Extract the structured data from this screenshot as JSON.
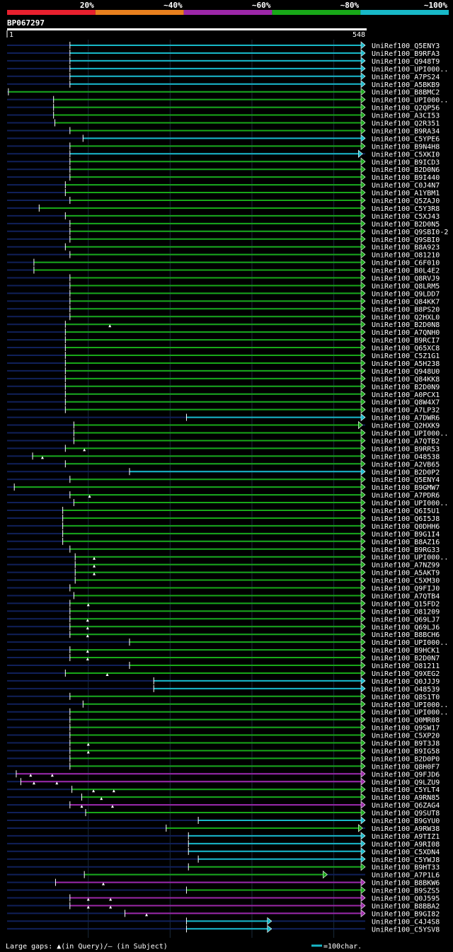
{
  "legend_bands": [
    {
      "label": "20%",
      "color": "#e8202e"
    },
    {
      "label": "~40%",
      "color": "#e8801e"
    },
    {
      "label": "~60%",
      "color": "#9c27a8"
    },
    {
      "label": "~80%",
      "color": "#18a818"
    },
    {
      "label": "~100%",
      "color": "#18b8c8"
    }
  ],
  "colors": {
    "background": "#000000",
    "query_line": "#10205a",
    "grid": "#1a2a3a"
  },
  "chart_data": {
    "type": "alignment_overview",
    "query_id": "BP067297",
    "query_start": "1",
    "query_end": "548",
    "query_length": 548,
    "grid_positions": [
      125,
      250,
      375,
      500
    ],
    "footer_left": "Large gaps: ▲(in Query)/– (in Subject)",
    "footer_right": "=100char.",
    "hits": [
      {
        "name": "UniRef100_Q5ENY3",
        "start": 97,
        "end": 548,
        "color": "cyan"
      },
      {
        "name": "UniRef100_B9RFA3",
        "start": 97,
        "end": 548,
        "color": "cyan"
      },
      {
        "name": "UniRef100_Q948T9",
        "start": 97,
        "end": 548,
        "color": "cyan"
      },
      {
        "name": "UniRef100_UPI000..",
        "start": 97,
        "end": 548,
        "color": "cyan"
      },
      {
        "name": "UniRef100_A7PS24",
        "start": 97,
        "end": 548,
        "color": "cyan"
      },
      {
        "name": "UniRef100_A5BKB9",
        "start": 97,
        "end": 548,
        "color": "cyan"
      },
      {
        "name": "UniRef100_B8BMC2",
        "start": 3,
        "end": 548,
        "color": "green"
      },
      {
        "name": "UniRef100_UPI000..",
        "start": 72,
        "end": 548,
        "color": "green"
      },
      {
        "name": "UniRef100_Q2QP56",
        "start": 72,
        "end": 548,
        "color": "green"
      },
      {
        "name": "UniRef100_A3CI53",
        "start": 72,
        "end": 548,
        "color": "green"
      },
      {
        "name": "UniRef100_Q2R351",
        "start": 74,
        "end": 548,
        "color": "green"
      },
      {
        "name": "UniRef100_B9RA34",
        "start": 97,
        "end": 548,
        "color": "green"
      },
      {
        "name": "UniRef100_C5YPE6",
        "start": 117,
        "end": 548,
        "color": "cyan"
      },
      {
        "name": "UniRef100_B9N4H8",
        "start": 97,
        "end": 548,
        "color": "green"
      },
      {
        "name": "UniRef100_C5XKI0",
        "start": 97,
        "end": 544,
        "color": "cyan"
      },
      {
        "name": "UniRef100_B9ICD3",
        "start": 97,
        "end": 548,
        "color": "green"
      },
      {
        "name": "UniRef100_B2D0N6",
        "start": 97,
        "end": 548,
        "color": "green"
      },
      {
        "name": "UniRef100_B9I440",
        "start": 97,
        "end": 548,
        "color": "green"
      },
      {
        "name": "UniRef100_C0J4N7",
        "start": 90,
        "end": 548,
        "color": "green"
      },
      {
        "name": "UniRef100_A1YBM1",
        "start": 90,
        "end": 548,
        "color": "green"
      },
      {
        "name": "UniRef100_Q5ZAJ0",
        "start": 97,
        "end": 548,
        "color": "green"
      },
      {
        "name": "UniRef100_C5Y3R8",
        "start": 50,
        "end": 548,
        "color": "green"
      },
      {
        "name": "UniRef100_C5XJ43",
        "start": 90,
        "end": 548,
        "color": "green"
      },
      {
        "name": "UniRef100_B2D0N5",
        "start": 97,
        "end": 548,
        "color": "green"
      },
      {
        "name": "UniRef100_Q9SBI0-2",
        "start": 97,
        "end": 548,
        "color": "green"
      },
      {
        "name": "UniRef100_Q9SBI0",
        "start": 97,
        "end": 548,
        "color": "green"
      },
      {
        "name": "UniRef100_B8A923",
        "start": 90,
        "end": 548,
        "color": "green"
      },
      {
        "name": "UniRef100_O81210",
        "start": 97,
        "end": 548,
        "color": "green"
      },
      {
        "name": "UniRef100_C6F010",
        "start": 42,
        "end": 548,
        "color": "green"
      },
      {
        "name": "UniRef100_B0L4E2",
        "start": 42,
        "end": 548,
        "color": "green"
      },
      {
        "name": "UniRef100_Q8RVJ9",
        "start": 97,
        "end": 548,
        "color": "green"
      },
      {
        "name": "UniRef100_Q8LRM5",
        "start": 97,
        "end": 548,
        "color": "green"
      },
      {
        "name": "UniRef100_Q9LDD7",
        "start": 97,
        "end": 548,
        "color": "green"
      },
      {
        "name": "UniRef100_Q84KK7",
        "start": 97,
        "end": 548,
        "color": "green"
      },
      {
        "name": "UniRef100_B8PS20",
        "start": 97,
        "end": 548,
        "color": "green"
      },
      {
        "name": "UniRef100_Q2HXL0",
        "start": 97,
        "end": 548,
        "color": "green"
      },
      {
        "name": "UniRef100_B2D0N8",
        "start": 90,
        "end": 548,
        "color": "green",
        "gaps": [
          158
        ]
      },
      {
        "name": "UniRef100_A7QNH0",
        "start": 90,
        "end": 548,
        "color": "green"
      },
      {
        "name": "UniRef100_B9RCI7",
        "start": 90,
        "end": 548,
        "color": "green"
      },
      {
        "name": "UniRef100_Q65XC8",
        "start": 90,
        "end": 548,
        "color": "green"
      },
      {
        "name": "UniRef100_C5Z1G1",
        "start": 90,
        "end": 548,
        "color": "green"
      },
      {
        "name": "UniRef100_A5H238",
        "start": 90,
        "end": 548,
        "color": "green"
      },
      {
        "name": "UniRef100_Q948U0",
        "start": 90,
        "end": 548,
        "color": "green"
      },
      {
        "name": "UniRef100_Q84KK8",
        "start": 90,
        "end": 548,
        "color": "green"
      },
      {
        "name": "UniRef100_B2D0N9",
        "start": 90,
        "end": 548,
        "color": "green"
      },
      {
        "name": "UniRef100_A0PCX1",
        "start": 90,
        "end": 548,
        "color": "green"
      },
      {
        "name": "UniRef100_Q8W4X7",
        "start": 90,
        "end": 548,
        "color": "green"
      },
      {
        "name": "UniRef100_A7LP32",
        "start": 90,
        "end": 548,
        "color": "green"
      },
      {
        "name": "UniRef100_A7DWR6",
        "start": 275,
        "end": 548,
        "color": "cyan"
      },
      {
        "name": "UniRef100_Q2HXK9",
        "start": 103,
        "end": 544,
        "color": "green"
      },
      {
        "name": "UniRef100_UPI000..",
        "start": 103,
        "end": 548,
        "color": "green"
      },
      {
        "name": "UniRef100_A7QTB2",
        "start": 103,
        "end": 548,
        "color": "green"
      },
      {
        "name": "UniRef100_B9RR53",
        "start": 90,
        "end": 548,
        "color": "green",
        "gaps": [
          119
        ]
      },
      {
        "name": "UniRef100_O48538",
        "start": 40,
        "end": 548,
        "color": "green",
        "gaps": [
          55
        ]
      },
      {
        "name": "UniRef100_A2VB65",
        "start": 90,
        "end": 548,
        "color": "green"
      },
      {
        "name": "UniRef100_B2D0P2",
        "start": 188,
        "end": 548,
        "color": "cyan"
      },
      {
        "name": "UniRef100_Q5ENY4",
        "start": 97,
        "end": 548,
        "color": "green"
      },
      {
        "name": "UniRef100_B9GMW7",
        "start": 12,
        "end": 548,
        "color": "green"
      },
      {
        "name": "UniRef100_A7PDR6",
        "start": 97,
        "end": 548,
        "color": "green",
        "gaps": [
          127
        ]
      },
      {
        "name": "UniRef100_UPI000..",
        "start": 103,
        "end": 548,
        "color": "green"
      },
      {
        "name": "UniRef100_Q6I5U1",
        "start": 86,
        "end": 548,
        "color": "green"
      },
      {
        "name": "UniRef100_Q6I5J8",
        "start": 86,
        "end": 548,
        "color": "green"
      },
      {
        "name": "UniRef100_Q0DHH6",
        "start": 86,
        "end": 548,
        "color": "green"
      },
      {
        "name": "UniRef100_B9G1I4",
        "start": 86,
        "end": 548,
        "color": "green"
      },
      {
        "name": "UniRef100_B8AZ16",
        "start": 86,
        "end": 548,
        "color": "green"
      },
      {
        "name": "UniRef100_B9RG33",
        "start": 97,
        "end": 548,
        "color": "green"
      },
      {
        "name": "UniRef100_UPI000..",
        "start": 105,
        "end": 548,
        "color": "green",
        "gaps": [
          134
        ]
      },
      {
        "name": "UniRef100_A7NZ99",
        "start": 105,
        "end": 548,
        "color": "green",
        "gaps": [
          134
        ]
      },
      {
        "name": "UniRef100_A5AKT9",
        "start": 105,
        "end": 548,
        "color": "green",
        "gaps": [
          134
        ]
      },
      {
        "name": "UniRef100_C5XM30",
        "start": 105,
        "end": 548,
        "color": "green"
      },
      {
        "name": "UniRef100_Q9FIJ0",
        "start": 97,
        "end": 548,
        "color": "green"
      },
      {
        "name": "UniRef100_A7QTB4",
        "start": 103,
        "end": 548,
        "color": "green"
      },
      {
        "name": "UniRef100_Q15FD2",
        "start": 97,
        "end": 548,
        "color": "green",
        "gaps": [
          125
        ]
      },
      {
        "name": "UniRef100_O81209",
        "start": 97,
        "end": 548,
        "color": "green"
      },
      {
        "name": "UniRef100_Q69LJ7",
        "start": 97,
        "end": 548,
        "color": "green",
        "gaps": [
          124
        ]
      },
      {
        "name": "UniRef100_Q69LJ6",
        "start": 97,
        "end": 548,
        "color": "green",
        "gaps": [
          124
        ]
      },
      {
        "name": "UniRef100_B8BCH6",
        "start": 97,
        "end": 548,
        "color": "green",
        "gaps": [
          124
        ]
      },
      {
        "name": "UniRef100_UPI000..",
        "start": 188,
        "end": 548,
        "color": "green"
      },
      {
        "name": "UniRef100_B9HCK1",
        "start": 97,
        "end": 548,
        "color": "green",
        "gaps": [
          124
        ]
      },
      {
        "name": "UniRef100_B2D0N7",
        "start": 97,
        "end": 548,
        "color": "green",
        "gaps": [
          124
        ]
      },
      {
        "name": "UniRef100_O81211",
        "start": 188,
        "end": 548,
        "color": "green"
      },
      {
        "name": "UniRef100_Q9XEG2",
        "start": 90,
        "end": 548,
        "color": "green",
        "gaps": [
          154
        ]
      },
      {
        "name": "UniRef100_Q0JJJ9",
        "start": 225,
        "end": 548,
        "color": "cyan"
      },
      {
        "name": "UniRef100_O48539",
        "start": 225,
        "end": 548,
        "color": "cyan"
      },
      {
        "name": "UniRef100_Q8S1T0",
        "start": 97,
        "end": 548,
        "color": "green"
      },
      {
        "name": "UniRef100_UPI000..",
        "start": 117,
        "end": 548,
        "color": "green"
      },
      {
        "name": "UniRef100_UPI000..",
        "start": 97,
        "end": 548,
        "color": "green"
      },
      {
        "name": "UniRef100_Q0MR08",
        "start": 97,
        "end": 548,
        "color": "green"
      },
      {
        "name": "UniRef100_Q9SW17",
        "start": 97,
        "end": 548,
        "color": "green"
      },
      {
        "name": "UniRef100_C5XP20",
        "start": 97,
        "end": 548,
        "color": "green"
      },
      {
        "name": "UniRef100_B9T3J8",
        "start": 97,
        "end": 548,
        "color": "green",
        "gaps": [
          125
        ]
      },
      {
        "name": "UniRef100_B9IG58",
        "start": 97,
        "end": 548,
        "color": "green",
        "gaps": [
          125
        ]
      },
      {
        "name": "UniRef100_B2D0P0",
        "start": 97,
        "end": 548,
        "color": "green"
      },
      {
        "name": "UniRef100_Q8H0F7",
        "start": 97,
        "end": 548,
        "color": "green"
      },
      {
        "name": "UniRef100_Q9FJD6",
        "start": 15,
        "end": 548,
        "color": "magenta",
        "gaps": [
          37,
          70
        ]
      },
      {
        "name": "UniRef100_Q9LZU9",
        "start": 22,
        "end": 548,
        "color": "magenta",
        "gaps": [
          42,
          77
        ]
      },
      {
        "name": "UniRef100_C5YLT4",
        "start": 100,
        "end": 548,
        "color": "green",
        "gaps": [
          133,
          164
        ]
      },
      {
        "name": "UniRef100_A9RN85",
        "start": 115,
        "end": 548,
        "color": "green",
        "gaps": [
          145
        ]
      },
      {
        "name": "UniRef100_Q6ZAG4",
        "start": 97,
        "end": 548,
        "color": "magenta",
        "gaps": [
          115,
          162
        ]
      },
      {
        "name": "UniRef100_Q9SUT8",
        "start": 121,
        "end": 548,
        "color": "green"
      },
      {
        "name": "UniRef100_B9GYU0",
        "start": 293,
        "end": 548,
        "color": "cyan"
      },
      {
        "name": "UniRef100_A9RW38",
        "start": 244,
        "end": 544,
        "color": "green"
      },
      {
        "name": "UniRef100_A9TIZ1",
        "start": 278,
        "end": 548,
        "color": "cyan"
      },
      {
        "name": "UniRef100_A9RI08",
        "start": 278,
        "end": 548,
        "color": "cyan"
      },
      {
        "name": "UniRef100_C5XDN4",
        "start": 278,
        "end": 548,
        "color": "cyan"
      },
      {
        "name": "UniRef100_C5YWJ8",
        "start": 293,
        "end": 548,
        "color": "cyan"
      },
      {
        "name": "UniRef100_B9HT33",
        "start": 278,
        "end": 548,
        "color": "green"
      },
      {
        "name": "UniRef100_A7P1L6",
        "start": 119,
        "end": 490,
        "color": "green"
      },
      {
        "name": "UniRef100_B8BKW6",
        "start": 75,
        "end": 548,
        "color": "magenta",
        "gaps": [
          148
        ]
      },
      {
        "name": "UniRef100_B9SZS5",
        "start": 275,
        "end": 548,
        "color": "green"
      },
      {
        "name": "UniRef100_Q0J595",
        "start": 97,
        "end": 548,
        "color": "magenta",
        "gaps": [
          125,
          159
        ]
      },
      {
        "name": "UniRef100_B8BBA2",
        "start": 97,
        "end": 548,
        "color": "magenta",
        "gaps": [
          125,
          159
        ]
      },
      {
        "name": "UniRef100_B9GI82",
        "start": 181,
        "end": 548,
        "color": "magenta",
        "gaps": [
          214
        ]
      },
      {
        "name": "UniRef100_C4J4S8",
        "start": 275,
        "end": 405,
        "color": "cyan"
      },
      {
        "name": "UniRef100_C5YSV8",
        "start": 275,
        "end": 405,
        "color": "cyan"
      }
    ]
  }
}
